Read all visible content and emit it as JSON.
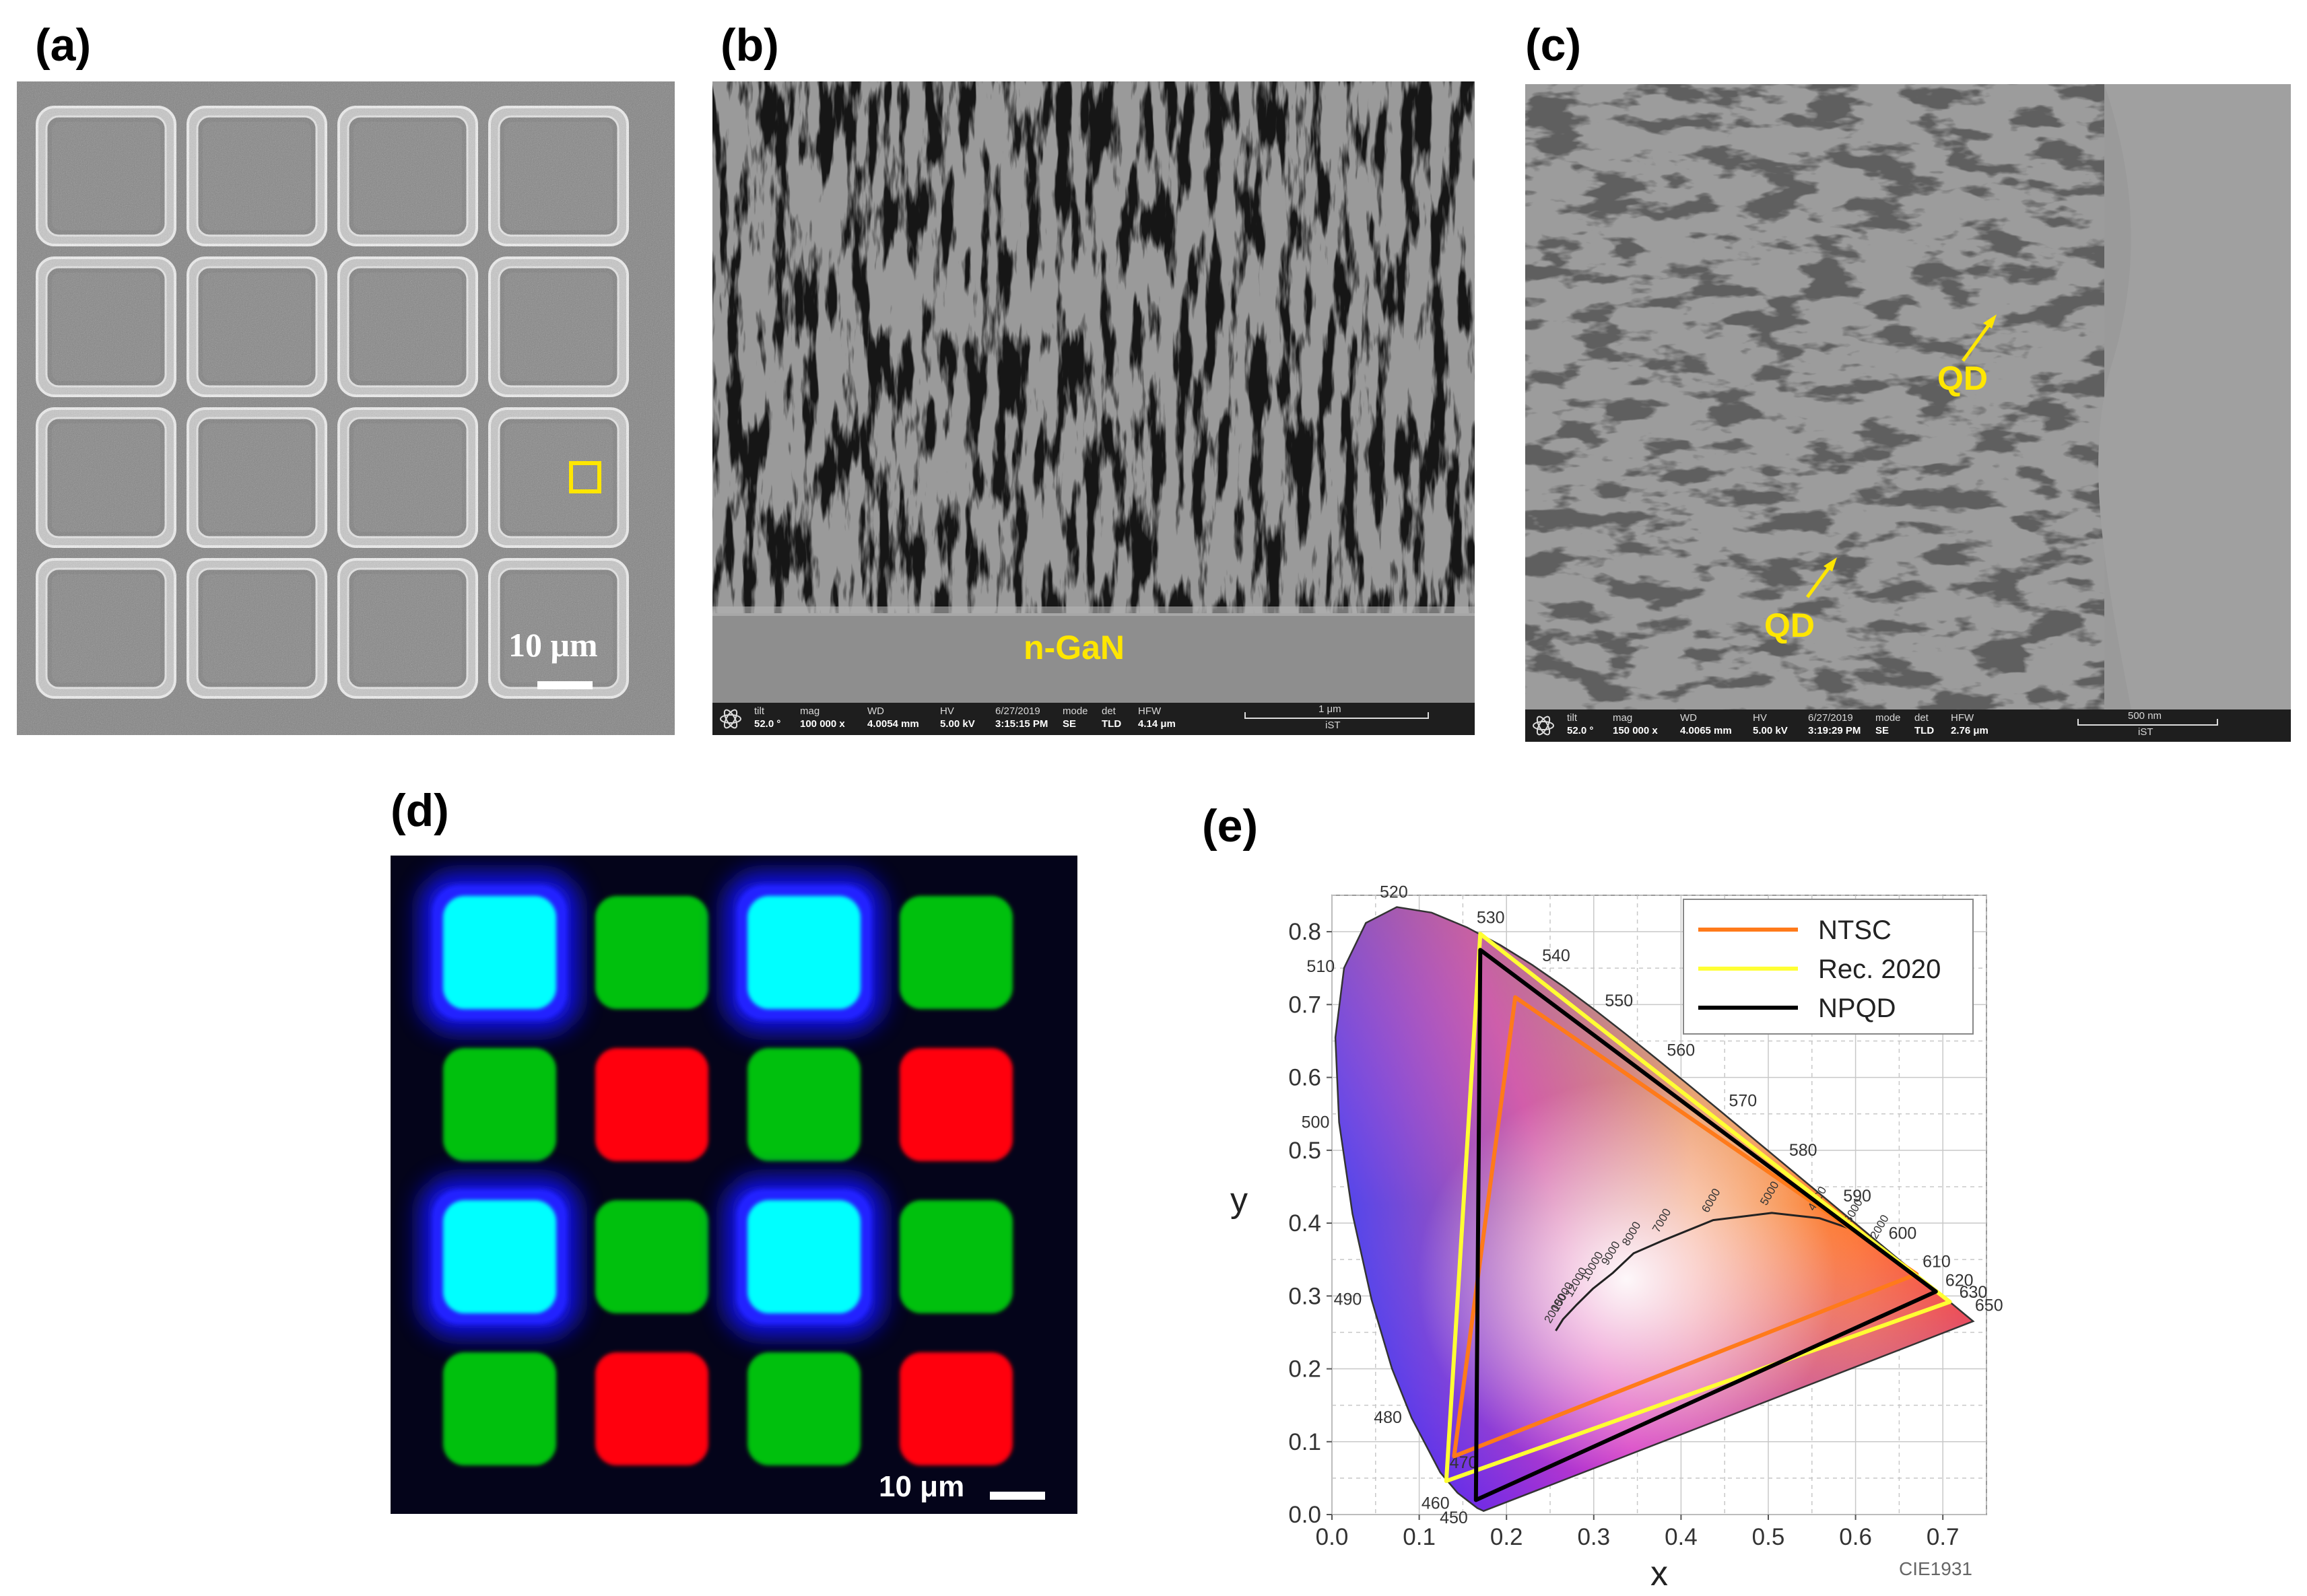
{
  "panels": {
    "a": {
      "label": "(a)",
      "scale_text": "10 μm"
    },
    "b": {
      "label": "(b)",
      "annotation": "n-GaN",
      "meta": {
        "tilt_h": "tilt",
        "tilt_v": "52.0 °",
        "mag_h": "mag",
        "mag_v": "100 000 x",
        "wd_h": "WD",
        "wd_v": "4.0054 mm",
        "hv_h": "HV",
        "hv_v": "5.00 kV",
        "date_v": "6/27/2019",
        "time_v": "3:15:15 PM",
        "mode_h": "mode",
        "mode_v": "SE",
        "det_h": "det",
        "det_v": "TLD",
        "hfw_h": "HFW",
        "hfw_v": "4.14 μm",
        "scale": "1 μm",
        "inst": "iST"
      }
    },
    "c": {
      "label": "(c)",
      "qd1": "QD",
      "qd2": "QD",
      "meta": {
        "tilt_h": "tilt",
        "tilt_v": "52.0 °",
        "mag_h": "mag",
        "mag_v": "150 000 x",
        "wd_h": "WD",
        "wd_v": "4.0065 mm",
        "hv_h": "HV",
        "hv_v": "5.00 kV",
        "date_v": "6/27/2019",
        "time_v": "3:19:29 PM",
        "mode_h": "mode",
        "mode_v": "SE",
        "det_h": "det",
        "det_v": "TLD",
        "hfw_h": "HFW",
        "hfw_v": "2.76 μm",
        "scale": "500 nm",
        "inst": "iST"
      }
    },
    "d": {
      "label": "(d)",
      "scale_text": "10 μm",
      "pixel_grid": [
        [
          "cyan",
          "green",
          "cyan",
          "green"
        ],
        [
          "green",
          "red",
          "green",
          "red"
        ],
        [
          "cyan",
          "green",
          "cyan",
          "green"
        ],
        [
          "green",
          "red",
          "green",
          "red"
        ]
      ],
      "colors": {
        "cyan": "#00ffff",
        "green": "#00c010",
        "red": "#ff0010",
        "blue_glow": "#1818ff"
      }
    },
    "e": {
      "label": "(e)",
      "xlabel": "x",
      "ylabel": "y",
      "footer": "CIE1931",
      "legend": [
        {
          "name": "NTSC",
          "color": "#ff7a1a"
        },
        {
          "name": "Rec. 2020",
          "color": "#ffff33"
        },
        {
          "name": "NPQD",
          "color": "#000000"
        }
      ]
    }
  },
  "chart_data": {
    "type": "scatter",
    "title": "",
    "xlabel": "x",
    "ylabel": "y",
    "xlim": [
      0.0,
      0.75
    ],
    "ylim": [
      0.0,
      0.85
    ],
    "xticks": [
      "0.0",
      "0.1",
      "0.2",
      "0.3",
      "0.4",
      "0.5",
      "0.6",
      "0.7"
    ],
    "yticks": [
      "0.0",
      "0.1",
      "0.2",
      "0.3",
      "0.4",
      "0.5",
      "0.6",
      "0.7",
      "0.8"
    ],
    "grid": true,
    "legend_position": "top-right",
    "locus": [
      [
        0.1741,
        0.005
      ],
      [
        0.1738,
        0.0049
      ],
      [
        0.1666,
        0.0089
      ],
      [
        0.144,
        0.0297
      ],
      [
        0.1241,
        0.0578
      ],
      [
        0.0913,
        0.1327
      ],
      [
        0.0687,
        0.2007
      ],
      [
        0.0454,
        0.295
      ],
      [
        0.0235,
        0.4127
      ],
      [
        0.0082,
        0.5384
      ],
      [
        0.0039,
        0.6548
      ],
      [
        0.0139,
        0.7502
      ],
      [
        0.0389,
        0.812
      ],
      [
        0.0743,
        0.8338
      ],
      [
        0.1142,
        0.8262
      ],
      [
        0.1547,
        0.8059
      ],
      [
        0.1929,
        0.7816
      ],
      [
        0.2296,
        0.7543
      ],
      [
        0.2658,
        0.7243
      ],
      [
        0.3016,
        0.6923
      ],
      [
        0.3373,
        0.6589
      ],
      [
        0.3731,
        0.6245
      ],
      [
        0.4087,
        0.5896
      ],
      [
        0.4441,
        0.5547
      ],
      [
        0.4788,
        0.5202
      ],
      [
        0.5125,
        0.4866
      ],
      [
        0.5448,
        0.4544
      ],
      [
        0.5752,
        0.4242
      ],
      [
        0.6029,
        0.3965
      ],
      [
        0.627,
        0.3725
      ],
      [
        0.6482,
        0.3514
      ],
      [
        0.6658,
        0.334
      ],
      [
        0.6801,
        0.3197
      ],
      [
        0.6915,
        0.3083
      ],
      [
        0.7006,
        0.2993
      ],
      [
        0.7079,
        0.292
      ],
      [
        0.7347,
        0.2653
      ]
    ],
    "wavelength_labels": [
      {
        "text": "450",
        "x": 0.165,
        "y": 0.01
      },
      {
        "text": "460",
        "x": 0.144,
        "y": 0.03
      },
      {
        "text": "470",
        "x": 0.124,
        "y": 0.058
      },
      {
        "text": "480",
        "x": 0.091,
        "y": 0.133
      },
      {
        "text": "490",
        "x": 0.045,
        "y": 0.295
      },
      {
        "text": "500",
        "x": 0.008,
        "y": 0.538
      },
      {
        "text": "510",
        "x": 0.014,
        "y": 0.75
      },
      {
        "text": "520",
        "x": 0.074,
        "y": 0.834
      },
      {
        "text": "530",
        "x": 0.155,
        "y": 0.806
      },
      {
        "text": "540",
        "x": 0.23,
        "y": 0.754
      },
      {
        "text": "550",
        "x": 0.302,
        "y": 0.692
      },
      {
        "text": "560",
        "x": 0.373,
        "y": 0.624
      },
      {
        "text": "570",
        "x": 0.444,
        "y": 0.555
      },
      {
        "text": "580",
        "x": 0.513,
        "y": 0.487
      },
      {
        "text": "590",
        "x": 0.575,
        "y": 0.424
      },
      {
        "text": "600",
        "x": 0.627,
        "y": 0.373
      },
      {
        "text": "610",
        "x": 0.666,
        "y": 0.334
      },
      {
        "text": "620",
        "x": 0.692,
        "y": 0.308
      },
      {
        "text": "630",
        "x": 0.708,
        "y": 0.292
      },
      {
        "text": "650",
        "x": 0.726,
        "y": 0.274
      }
    ],
    "planckian": [
      [
        0.2565,
        0.2523
      ],
      [
        0.2647,
        0.268
      ],
      [
        0.2806,
        0.2883
      ],
      [
        0.299,
        0.31
      ],
      [
        0.322,
        0.3318
      ],
      [
        0.3457,
        0.3586
      ],
      [
        0.3804,
        0.3767
      ],
      [
        0.4369,
        0.4041
      ],
      [
        0.504,
        0.414
      ],
      [
        0.5586,
        0.4068
      ],
      [
        0.6,
        0.39
      ],
      [
        0.63,
        0.368
      ]
    ],
    "cct_labels": [
      "20000",
      "15000",
      "12000",
      "10000",
      "9000",
      "8000",
      "7000",
      "6000",
      "5000",
      "4000",
      "3000",
      "2000"
    ],
    "series": [
      {
        "name": "NTSC",
        "points": [
          [
            0.67,
            0.33
          ],
          [
            0.21,
            0.71
          ],
          [
            0.14,
            0.08
          ]
        ]
      },
      {
        "name": "Rec. 2020",
        "points": [
          [
            0.708,
            0.292
          ],
          [
            0.17,
            0.797
          ],
          [
            0.131,
            0.046
          ]
        ]
      },
      {
        "name": "NPQD",
        "points": [
          [
            0.692,
            0.306
          ],
          [
            0.17,
            0.775
          ],
          [
            0.165,
            0.02
          ]
        ]
      }
    ]
  }
}
